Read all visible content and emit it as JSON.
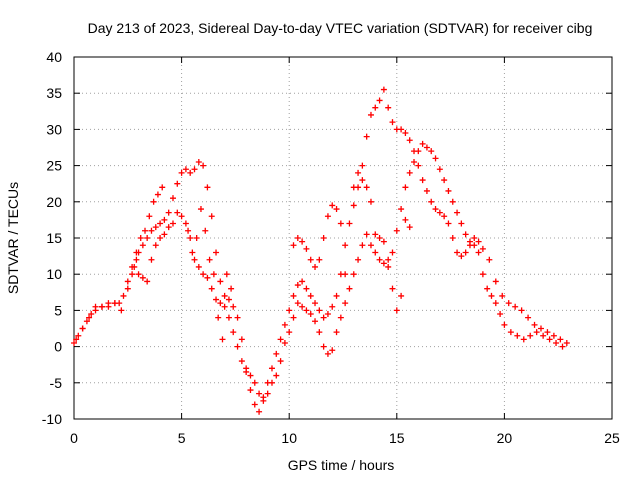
{
  "chart_data": {
    "type": "scatter",
    "title": "Day 213 of 2023, Sidereal Day-to-day VTEC variation (SDTVAR) for receiver cibg",
    "xlabel": "GPS time / hours",
    "ylabel": "SDTVAR / TECUs",
    "xlim": [
      0,
      25
    ],
    "ylim": [
      -10,
      40
    ],
    "xticks": [
      0,
      5,
      10,
      15,
      20,
      25
    ],
    "yticks": [
      -10,
      -5,
      0,
      5,
      10,
      15,
      20,
      25,
      30,
      35,
      40
    ],
    "grid": true,
    "marker": "+",
    "series": [
      {
        "name": "SDTVAR",
        "color": "#ff0000",
        "x": [
          0.0,
          0.2,
          0.4,
          0.6,
          0.8,
          1.0,
          1.3,
          1.6,
          1.9,
          2.1,
          2.3,
          2.5,
          2.7,
          2.9,
          3.0,
          3.2,
          3.4,
          3.6,
          3.8,
          4.0,
          4.2,
          4.4,
          4.6,
          4.8,
          5.0,
          5.2,
          5.4,
          5.6,
          5.8,
          6.0,
          6.2,
          6.4,
          6.6,
          6.8,
          7.0,
          7.2,
          7.4,
          7.6,
          7.8,
          8.0,
          8.2,
          8.4,
          8.6,
          8.8,
          9.0,
          9.2,
          9.4,
          9.6,
          9.8,
          10.0,
          10.2,
          10.4,
          10.6,
          10.8,
          11.0,
          11.2,
          11.4,
          11.6,
          11.8,
          12.0,
          12.2,
          12.4,
          12.6,
          12.8,
          13.0,
          13.2,
          13.4,
          13.6,
          13.8,
          14.0,
          14.2,
          14.4,
          14.6,
          14.8,
          15.0,
          15.2,
          15.4,
          15.6,
          15.8,
          16.0,
          16.2,
          16.4,
          16.6,
          16.8,
          17.0,
          17.2,
          17.4,
          17.6,
          17.8,
          18.0,
          18.2,
          18.4,
          18.6,
          18.8,
          19.0,
          19.2,
          19.4,
          19.6,
          19.8,
          20.0,
          20.3,
          20.6,
          20.9,
          21.2,
          21.5,
          21.8,
          22.1,
          22.4,
          22.7
        ],
        "y": [
          0.5,
          1.5,
          2.5,
          3.5,
          4.5,
          5.5,
          5.5,
          6.0,
          6.0,
          6.0,
          7.0,
          8.0,
          10.0,
          12.0,
          13.0,
          14.0,
          15.0,
          16.0,
          16.5,
          17.0,
          17.5,
          18.5,
          20.5,
          22.5,
          24.0,
          24.5,
          24.0,
          24.5,
          25.5,
          25.0,
          22.0,
          18.0,
          13.0,
          9.0,
          7.0,
          6.5,
          5.5,
          4.0,
          1.0,
          -3.0,
          -6.0,
          -8.0,
          -9.0,
          -7.5,
          -5.0,
          -3.0,
          -1.0,
          1.0,
          3.0,
          5.0,
          7.0,
          8.5,
          9.0,
          8.0,
          7.0,
          6.0,
          5.0,
          4.0,
          4.5,
          5.5,
          7.0,
          10.0,
          14.0,
          17.0,
          19.5,
          22.0,
          25.0,
          29.0,
          32.0,
          33.0,
          34.0,
          35.5,
          33.0,
          31.0,
          30.0,
          30.0,
          29.5,
          28.5,
          27.0,
          25.0,
          23.0,
          21.5,
          20.0,
          19.0,
          18.5,
          18.0,
          17.0,
          15.0,
          13.0,
          12.5,
          13.0,
          14.0,
          15.0,
          13.0,
          10.0,
          8.0,
          7.0,
          6.0,
          4.5,
          3.0,
          2.0,
          1.5,
          1.0,
          1.5,
          2.0,
          1.5,
          1.0,
          0.5,
          0.0
        ]
      },
      {
        "name": "SDTVAR",
        "color": "#ff0000",
        "x": [
          0.1,
          0.4,
          0.7,
          1.0,
          1.3,
          1.6,
          1.9,
          2.2,
          2.5,
          2.8,
          3.0,
          3.2,
          3.4,
          3.6,
          3.8,
          4.0,
          4.2,
          4.4,
          4.6,
          4.8,
          5.0,
          5.2,
          5.4,
          5.6,
          5.8,
          6.0,
          6.2,
          6.4,
          6.6,
          6.8,
          7.0,
          7.2,
          7.4,
          7.6,
          7.8,
          8.0,
          8.2,
          8.4,
          8.6,
          8.8,
          9.0,
          9.2,
          9.4,
          9.6,
          9.8,
          10.0,
          10.2,
          10.4,
          10.6,
          10.8,
          11.0,
          11.2,
          11.4,
          11.6,
          11.8,
          12.0,
          12.2,
          12.4,
          12.6,
          12.8,
          13.0,
          13.2,
          13.4,
          13.6,
          13.8,
          14.0,
          14.2,
          14.4,
          14.6,
          14.8,
          15.0,
          15.2,
          15.4,
          15.6,
          15.8,
          16.0,
          16.2,
          16.4,
          16.6,
          16.8,
          17.0,
          17.2,
          17.4,
          17.6,
          17.8,
          18.0,
          18.2,
          18.4,
          18.6,
          18.8,
          19.0,
          19.3,
          19.6,
          19.9,
          20.2,
          20.5,
          20.8,
          21.1,
          21.4,
          21.7,
          22.0,
          22.3,
          22.6,
          22.9
        ],
        "y": [
          1.0,
          2.5,
          4.0,
          5.0,
          5.5,
          5.5,
          6.0,
          5.0,
          9.0,
          11.0,
          10.0,
          9.5,
          9.0,
          12.0,
          14.0,
          15.0,
          15.5,
          16.5,
          17.0,
          18.5,
          18.0,
          17.0,
          15.0,
          12.0,
          11.0,
          10.0,
          9.5,
          8.0,
          6.5,
          6.0,
          5.5,
          4.0,
          2.0,
          0.0,
          -2.0,
          -3.5,
          -4.0,
          -5.0,
          -6.5,
          -7.0,
          -6.5,
          -5.0,
          -4.0,
          -2.0,
          0.5,
          2.0,
          4.0,
          6.0,
          5.5,
          5.0,
          4.5,
          3.5,
          2.0,
          0.0,
          -1.0,
          -0.5,
          2.0,
          4.0,
          6.0,
          8.0,
          10.0,
          12.0,
          14.0,
          15.5,
          14.0,
          13.0,
          12.0,
          11.5,
          11.0,
          13.0,
          16.0,
          19.0,
          22.0,
          24.0,
          25.5,
          27.0,
          28.0,
          27.5,
          27.0,
          26.0,
          24.5,
          23.0,
          21.5,
          20.0,
          18.5,
          17.0,
          15.5,
          14.5,
          14.0,
          14.5,
          13.5,
          12.0,
          9.0,
          7.0,
          6.0,
          5.5,
          5.0,
          4.0,
          3.0,
          2.5,
          2.0,
          1.5,
          1.0,
          0.5
        ]
      },
      {
        "name": "SDTVAR",
        "color": "#ff0000",
        "x": [
          2.7,
          2.9,
          3.1,
          3.3,
          3.5,
          3.7,
          3.9,
          4.1,
          5.3,
          5.5,
          5.7,
          5.9,
          6.1,
          6.3,
          6.5,
          6.7,
          6.9,
          7.1,
          7.3,
          10.2,
          10.4,
          10.6,
          10.8,
          11.0,
          11.2,
          11.4,
          11.6,
          11.8,
          12.0,
          12.2,
          12.4,
          12.6,
          13.0,
          13.2,
          13.4,
          13.6,
          13.8,
          14.0,
          14.2,
          14.4,
          14.6,
          14.8,
          15.0,
          15.2,
          15.4,
          15.6
        ],
        "y": [
          11.0,
          13.0,
          15.0,
          16.0,
          18.0,
          20.0,
          21.0,
          22.0,
          16.0,
          13.0,
          15.0,
          19.0,
          16.0,
          12.0,
          10.0,
          4.0,
          1.0,
          10.0,
          8.0,
          14.0,
          15.0,
          14.5,
          13.5,
          12.0,
          11.0,
          12.0,
          15.0,
          18.0,
          19.5,
          19.0,
          17.0,
          10.0,
          22.0,
          24.0,
          23.0,
          22.0,
          20.0,
          15.5,
          15.0,
          14.5,
          12.0,
          8.0,
          5.0,
          7.0,
          17.5,
          16.5
        ]
      }
    ]
  }
}
